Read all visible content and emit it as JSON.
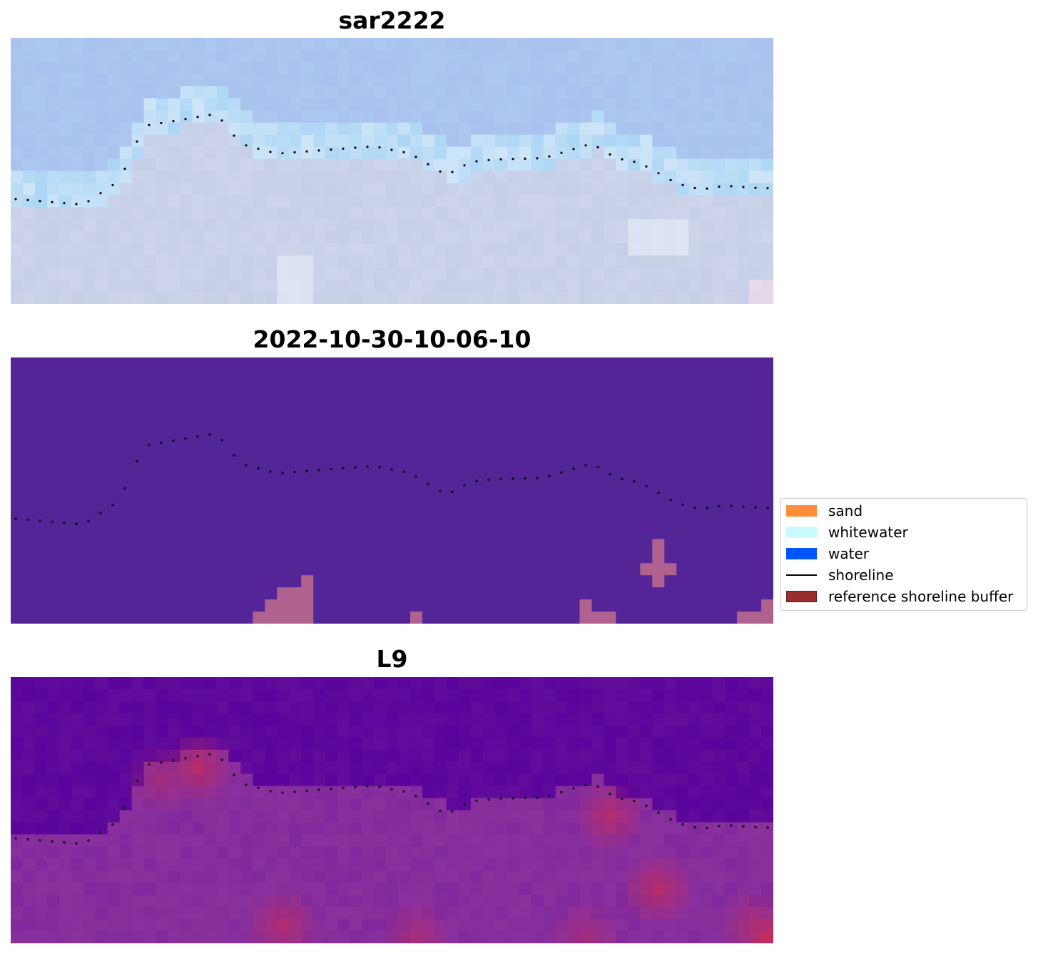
{
  "panels": [
    {
      "title": "sar2222",
      "kind": "rgb"
    },
    {
      "title": "2022-10-30-10-06-10",
      "kind": "classified"
    },
    {
      "title": "L9",
      "kind": "index"
    }
  ],
  "legend": {
    "entries": [
      {
        "label": "sand",
        "type": "patch",
        "color": "#ff8c3a"
      },
      {
        "label": "whitewater",
        "type": "patch",
        "color": "#c8fbff"
      },
      {
        "label": "water",
        "type": "patch",
        "color": "#0055ff"
      },
      {
        "label": "shoreline",
        "type": "line",
        "color": "#000000"
      },
      {
        "label": "reference shoreline buffer",
        "type": "patch",
        "color": "#9b2d2d"
      }
    ]
  },
  "colors": {
    "classified_bg": "#532597",
    "buffer_overlay": "#b0628f",
    "rgb_sky": "#a9c1ee",
    "rgb_shore": "#c6cfe6",
    "index_low": "#54009b",
    "index_mid": "#862e9c",
    "index_high": "#c02d5c"
  }
}
